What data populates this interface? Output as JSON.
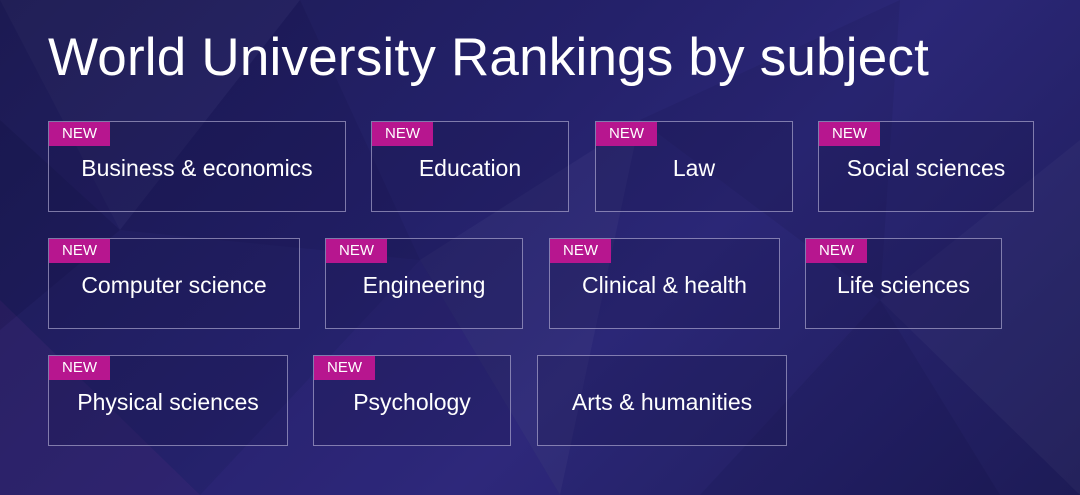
{
  "page": {
    "title": "World University Rankings by subject",
    "badge_color": "#b7168f",
    "background_color": "#23206a"
  },
  "subjects": [
    {
      "label": "Business & economics",
      "badge": "NEW"
    },
    {
      "label": "Education",
      "badge": "NEW"
    },
    {
      "label": "Law",
      "badge": "NEW"
    },
    {
      "label": "Social sciences",
      "badge": "NEW"
    },
    {
      "label": "Computer science",
      "badge": "NEW"
    },
    {
      "label": "Engineering",
      "badge": "NEW"
    },
    {
      "label": "Clinical & health",
      "badge": "NEW"
    },
    {
      "label": "Life sciences",
      "badge": "NEW"
    },
    {
      "label": "Physical sciences",
      "badge": "NEW"
    },
    {
      "label": "Psychology",
      "badge": "NEW"
    },
    {
      "label": "Arts & humanities",
      "badge": null
    }
  ]
}
